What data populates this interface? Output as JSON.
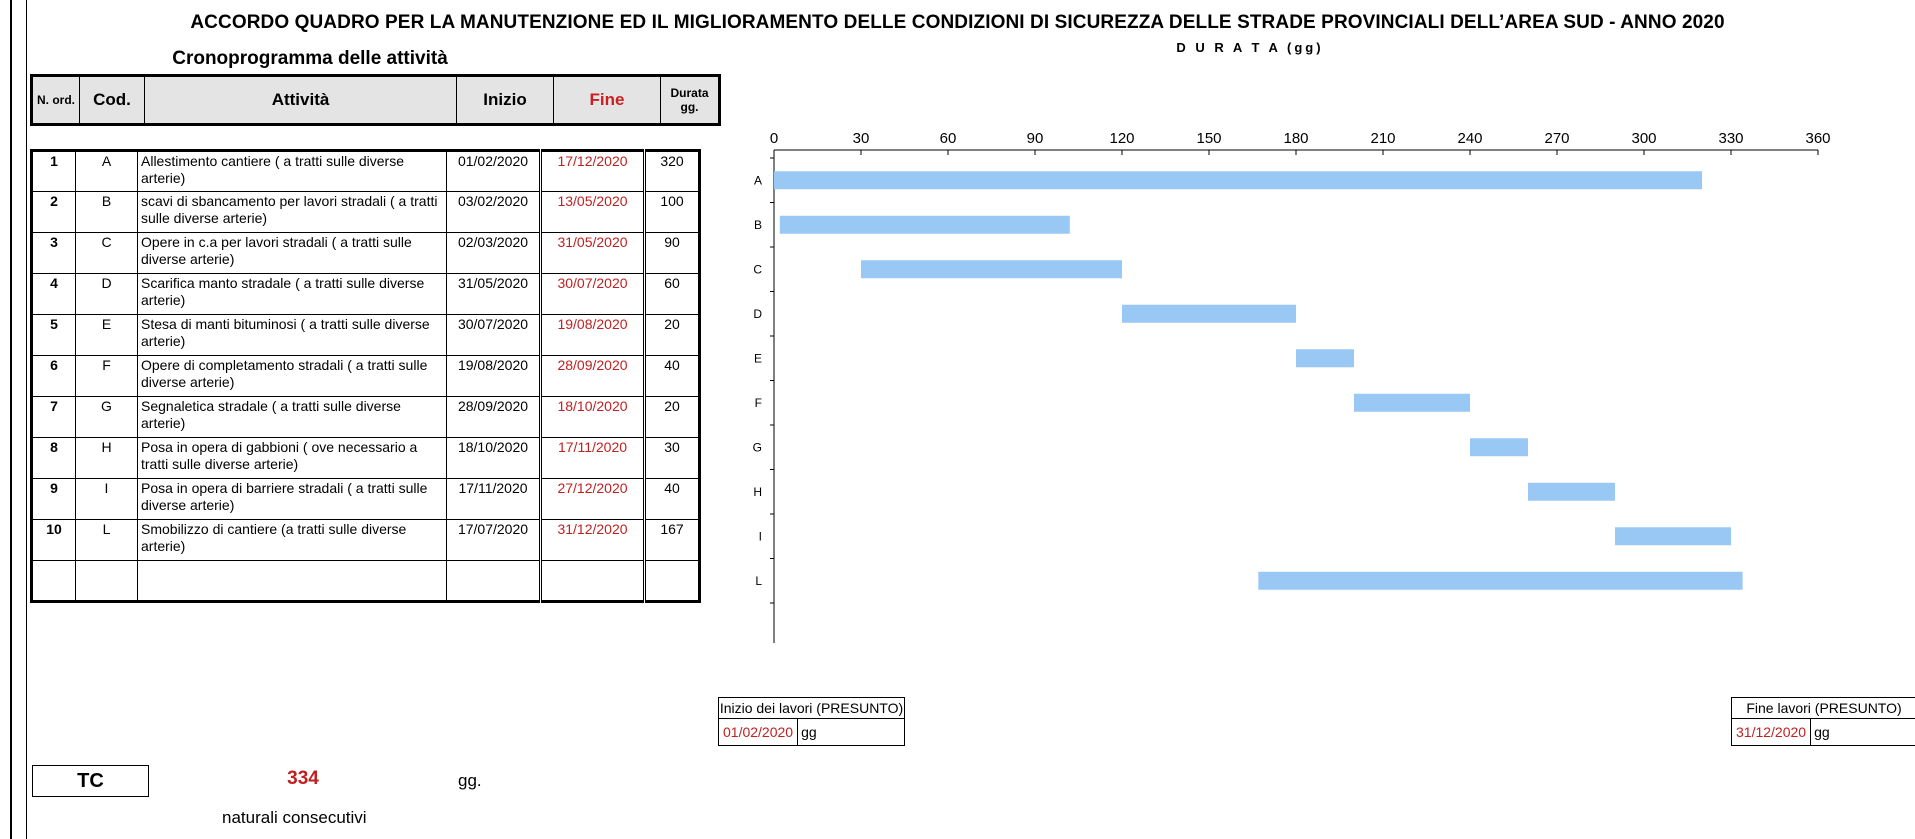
{
  "title": "ACCORDO QUADRO PER LA MANUTENZIONE ED IL MIGLIORAMENTO DELLE CONDIZIONI DI SICUREZZA DELLE STRADE PROVINCIALI DELL’AREA SUD - ANNO 2020",
  "subtitle": "Cronoprogramma delle attività",
  "table": {
    "headers": {
      "ord": "N. ord.",
      "cod": "Cod.",
      "attivita": "Attività",
      "inizio": "Inizio",
      "fine": "Fine",
      "durata": "Durata gg."
    },
    "rows": [
      {
        "ord": "1",
        "cod": "A",
        "attivita": "Allestimento cantiere ( a tratti sulle diverse arterie)",
        "inizio": "01/02/2020",
        "fine": "17/12/2020",
        "durata": "320"
      },
      {
        "ord": "2",
        "cod": "B",
        "attivita": "scavi di sbancamento per lavori stradali ( a tratti sulle diverse arterie)",
        "inizio": "03/02/2020",
        "fine": "13/05/2020",
        "durata": "100"
      },
      {
        "ord": "3",
        "cod": "C",
        "attivita": "Opere in c.a per lavori stradali ( a tratti sulle diverse arterie)",
        "inizio": "02/03/2020",
        "fine": "31/05/2020",
        "durata": "90"
      },
      {
        "ord": "4",
        "cod": "D",
        "attivita": "Scarifica manto stradale ( a tratti sulle diverse arterie)",
        "inizio": "31/05/2020",
        "fine": "30/07/2020",
        "durata": "60"
      },
      {
        "ord": "5",
        "cod": "E",
        "attivita": "Stesa di manti bituminosi ( a tratti sulle diverse arterie)",
        "inizio": "30/07/2020",
        "fine": "19/08/2020",
        "durata": "20"
      },
      {
        "ord": "6",
        "cod": "F",
        "attivita": "Opere di completamento stradali ( a tratti sulle diverse arterie)",
        "inizio": "19/08/2020",
        "fine": "28/09/2020",
        "durata": "40"
      },
      {
        "ord": "7",
        "cod": "G",
        "attivita": "Segnaletica stradale ( a tratti sulle diverse arterie)",
        "inizio": "28/09/2020",
        "fine": "18/10/2020",
        "durata": "20"
      },
      {
        "ord": "8",
        "cod": "H",
        "attivita": "Posa in opera di gabbioni ( ove necessario a tratti sulle diverse arterie)",
        "inizio": "18/10/2020",
        "fine": "17/11/2020",
        "durata": "30"
      },
      {
        "ord": "9",
        "cod": "I",
        "attivita": "Posa in opera di barriere stradali ( a tratti sulle diverse arterie)",
        "inizio": "17/11/2020",
        "fine": "27/12/2020",
        "durata": "40"
      },
      {
        "ord": "10",
        "cod": "L",
        "attivita": "Smobilizzo di cantiere (a tratti sulle diverse arterie)",
        "inizio": "17/07/2020",
        "fine": "31/12/2020",
        "durata": "167"
      }
    ]
  },
  "inizio_lavori": {
    "label": "Inizio dei lavori (PRESUNTO)",
    "date": "01/02/2020",
    "unit": "gg"
  },
  "fine_lavori": {
    "label": "Fine lavori (PRESUNTO)",
    "date": "31/12/2020",
    "unit": "gg"
  },
  "tc": {
    "label": "TC",
    "value": "334",
    "unit": "gg.",
    "note": "naturali consecutivi"
  },
  "colors": {
    "bar": "#99c8f5",
    "red": "#c02020",
    "header_bg": "#e4e4e4"
  },
  "chart_data": {
    "type": "bar",
    "orientation": "horizontal-gantt",
    "title": "D U R A T A  (gg)",
    "categories": [
      "A",
      "B",
      "C",
      "D",
      "E",
      "F",
      "G",
      "H",
      "I",
      "L"
    ],
    "start": [
      0,
      2,
      30,
      120,
      180,
      200,
      240,
      260,
      290,
      167
    ],
    "end": [
      320,
      102,
      120,
      180,
      200,
      240,
      260,
      290,
      330,
      334
    ],
    "xlim": [
      0,
      360
    ],
    "xticks": [
      0,
      30,
      60,
      90,
      120,
      150,
      180,
      210,
      240,
      270,
      300,
      330,
      360
    ],
    "xaxis_position": "top",
    "grid": false,
    "legend": "none"
  }
}
